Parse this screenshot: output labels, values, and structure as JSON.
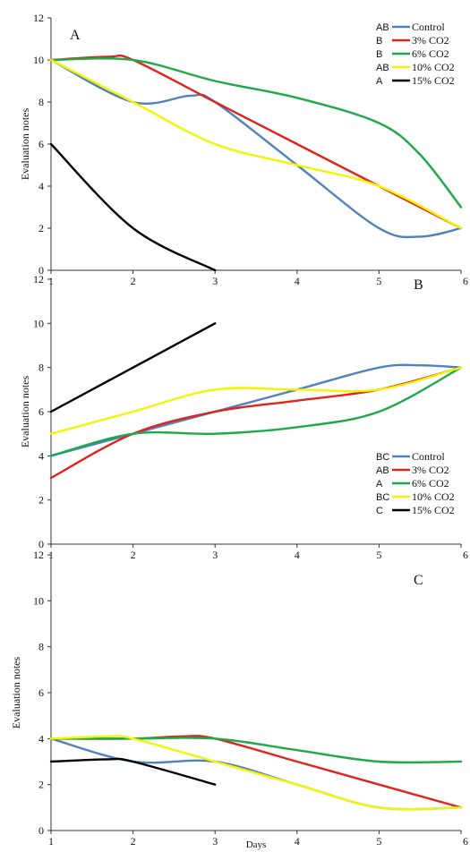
{
  "chart_data": [
    {
      "type": "line",
      "panel_label": "A",
      "ylabel": "Evaluation notes",
      "xlabel": "",
      "xlim": [
        1,
        6
      ],
      "ylim": [
        0,
        12
      ],
      "x_ticks": [
        1,
        2,
        3,
        4,
        5,
        6
      ],
      "y_ticks": [
        0,
        2,
        4,
        6,
        8,
        10,
        12
      ],
      "grid": false,
      "legend_position": "top-right",
      "series": [
        {
          "name": "Control",
          "group": "AB",
          "color": "#4f81bd",
          "x": [
            1,
            2,
            2.7,
            3,
            4,
            5,
            5.5,
            6
          ],
          "values": [
            10,
            8,
            8.3,
            8,
            5,
            2,
            1.6,
            2
          ]
        },
        {
          "name": "3% CO2",
          "group": "B",
          "color": "#e0231c",
          "x": [
            1,
            1.7,
            2,
            3,
            4,
            5,
            6
          ],
          "values": [
            10,
            10.15,
            10,
            8,
            6,
            4,
            2
          ]
        },
        {
          "name": "6% CO2",
          "group": "B",
          "color": "#1fa84a",
          "x": [
            1,
            2,
            3,
            4,
            5,
            5.5,
            6
          ],
          "values": [
            10,
            10,
            9,
            8.2,
            7,
            5.5,
            3
          ]
        },
        {
          "name": "10% CO2",
          "group": "AB",
          "color": "#f4f400",
          "x": [
            1,
            2,
            3,
            4,
            5,
            6
          ],
          "values": [
            10,
            8,
            6,
            5,
            4,
            2
          ]
        },
        {
          "name": "15% CO2",
          "group": "A",
          "color": "#000000",
          "x": [
            1,
            2,
            3
          ],
          "values": [
            6,
            2,
            0
          ]
        }
      ]
    },
    {
      "type": "line",
      "panel_label": "B",
      "ylabel": "Evaluation notes",
      "xlabel": "",
      "xlim": [
        1,
        6
      ],
      "ylim": [
        0,
        12
      ],
      "x_ticks": [
        1,
        2,
        3,
        4,
        5,
        6
      ],
      "y_ticks": [
        0,
        2,
        4,
        6,
        8,
        10,
        12
      ],
      "grid": false,
      "legend_position": "bottom-right",
      "series": [
        {
          "name": "Control",
          "group": "BC",
          "color": "#4f81bd",
          "x": [
            1,
            2,
            3,
            4,
            5,
            5.5,
            6
          ],
          "values": [
            4,
            5,
            6,
            7,
            8,
            8.1,
            8
          ]
        },
        {
          "name": "3% CO2",
          "group": "AB",
          "color": "#e0231c",
          "x": [
            1,
            2,
            3,
            4,
            5,
            6
          ],
          "values": [
            3,
            5,
            6,
            6.5,
            7,
            8
          ]
        },
        {
          "name": "6% CO2",
          "group": "A",
          "color": "#1fa84a",
          "x": [
            1,
            2,
            3,
            4,
            5,
            6
          ],
          "values": [
            4,
            5,
            5,
            5.3,
            6,
            8
          ]
        },
        {
          "name": "10% CO2",
          "group": "BC",
          "color": "#f4f400",
          "x": [
            1,
            2,
            3,
            4,
            5,
            6
          ],
          "values": [
            5,
            6,
            7,
            7,
            7,
            8
          ]
        },
        {
          "name": "15% CO2",
          "group": "C",
          "color": "#000000",
          "x": [
            1,
            2,
            3
          ],
          "values": [
            6,
            8,
            10
          ]
        }
      ]
    },
    {
      "type": "line",
      "panel_label": "C",
      "ylabel": "Evaluation notes",
      "xlabel": "Days",
      "xlim": [
        1,
        6
      ],
      "ylim": [
        0,
        12
      ],
      "x_ticks": [
        1,
        2,
        3,
        4,
        5,
        6
      ],
      "y_ticks": [
        0,
        2,
        4,
        6,
        8,
        10,
        12
      ],
      "grid": false,
      "series": [
        {
          "name": "Control",
          "color": "#4f81bd",
          "x": [
            1,
            2,
            3,
            4,
            5,
            6
          ],
          "values": [
            4,
            3,
            3,
            2,
            1,
            1
          ]
        },
        {
          "name": "3% CO2",
          "color": "#e0231c",
          "x": [
            1,
            2,
            2.6,
            3,
            4,
            5,
            6
          ],
          "values": [
            4,
            4,
            4.1,
            4,
            3,
            2,
            1
          ]
        },
        {
          "name": "6% CO2",
          "color": "#1fa84a",
          "x": [
            1,
            2,
            3,
            4,
            5,
            6
          ],
          "values": [
            4,
            4,
            4,
            3.5,
            3,
            3
          ]
        },
        {
          "name": "10% CO2",
          "color": "#f4f400",
          "x": [
            1,
            1.7,
            2,
            3,
            4,
            5,
            6
          ],
          "values": [
            4,
            4.1,
            4,
            3,
            2,
            1,
            1
          ]
        },
        {
          "name": "15% CO2",
          "color": "#000000",
          "x": [
            1,
            1.7,
            2,
            3
          ],
          "values": [
            3,
            3.1,
            3,
            2
          ]
        }
      ]
    }
  ]
}
